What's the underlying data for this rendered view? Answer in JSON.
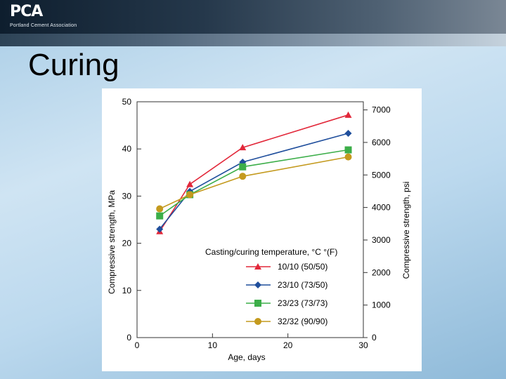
{
  "header": {
    "logo_text": "PCA",
    "logo_subtitle": "Portland Cement Association"
  },
  "slide": {
    "title": "Curing"
  },
  "chart_data": {
    "type": "line",
    "title": "",
    "xlabel": "Age, days",
    "ylabel": "Compressive strength, MPa",
    "ylabel_right": "Compressive strength, psi",
    "xlim": [
      0,
      30
    ],
    "ylim": [
      0,
      50
    ],
    "ylim_right": [
      0,
      7250
    ],
    "x_ticks": [
      0,
      10,
      20,
      30
    ],
    "y_ticks": [
      0,
      10,
      20,
      30,
      40,
      50
    ],
    "y_ticks_right": [
      0,
      1000,
      2000,
      3000,
      4000,
      5000,
      6000,
      7000
    ],
    "grid": false,
    "legend_title": "Casting/curing temperature, °C °(F)",
    "legend_position": "bottom-right",
    "series": [
      {
        "name": "10/10 (50/50)",
        "color": "#e2283a",
        "marker": "triangle",
        "x": [
          3,
          7,
          14,
          28
        ],
        "y": [
          22.5,
          32.5,
          40.3,
          47.2
        ]
      },
      {
        "name": "23/10 (73/50)",
        "color": "#1f4e9c",
        "marker": "diamond",
        "x": [
          3,
          7,
          14,
          28
        ],
        "y": [
          23,
          31,
          37.2,
          43.3
        ]
      },
      {
        "name": "23/23 (73/73)",
        "color": "#3cae49",
        "marker": "square",
        "x": [
          3,
          7,
          14,
          28
        ],
        "y": [
          25.8,
          30.3,
          36.2,
          39.8
        ]
      },
      {
        "name": "32/32 (90/90)",
        "color": "#c49a1e",
        "marker": "circle",
        "x": [
          3,
          7,
          14,
          28
        ],
        "y": [
          27.3,
          30.3,
          34.2,
          38.3
        ]
      }
    ]
  }
}
